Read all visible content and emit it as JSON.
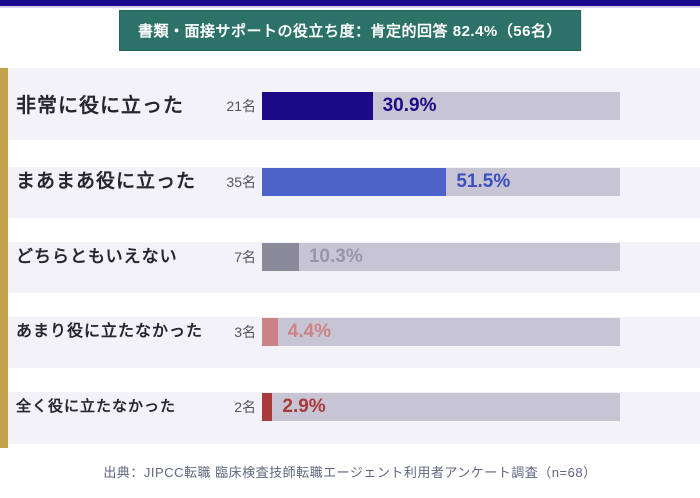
{
  "title": {
    "text": "書類・面接サポートの役立ち度：肯定的回答 82.4%（56名）"
  },
  "chart_data": {
    "type": "bar",
    "orientation": "horizontal",
    "title": "書類・面接サポートの役立ち度：肯定的回答 82.4%（56名）",
    "categories": [
      "非常に役に立った",
      "まあまあ役に立った",
      "どちらともいえない",
      "あまり役に立たなかった",
      "全く役に立たなかった"
    ],
    "values": [
      30.9,
      51.5,
      10.3,
      4.4,
      2.9
    ],
    "counts": [
      21,
      35,
      7,
      3,
      2
    ],
    "count_labels": [
      "21名",
      "35名",
      "7名",
      "3名",
      "2名"
    ],
    "value_labels": [
      "30.9%",
      "51.5%",
      "10.3%",
      "4.4%",
      "2.9%"
    ],
    "bar_colors": [
      "#1c0987",
      "#4d63c8",
      "#8b8a9b",
      "#cd8286",
      "#a93a3b"
    ],
    "value_label_colors": [
      "#1c0987",
      "#3a4fc0",
      "#9896a6",
      "#cd8286",
      "#a93a3b"
    ],
    "xlim": [
      0,
      100
    ],
    "grid": false,
    "legend": false,
    "sample_note": "n=68"
  },
  "rows": [
    {
      "label": "非常に役に立った",
      "count_label": "21名",
      "value_label": "30.9%"
    },
    {
      "label": "まあまあ役に立った",
      "count_label": "35名",
      "value_label": "51.5%"
    },
    {
      "label": "どちらともいえない",
      "count_label": "7名",
      "value_label": "10.3%"
    },
    {
      "label": "あまり役に立たなかった",
      "count_label": "3名",
      "value_label": "4.4%"
    },
    {
      "label": "全く役に立たなかった",
      "count_label": "2名",
      "value_label": "2.9%"
    }
  ],
  "footer": {
    "text": "出典：JIPCC転職 臨床検査技師転職エージェント利用者アンケート調査（n=68）"
  },
  "colors": {
    "top_strip": "#190a8e",
    "top_strip_line": "#d2d0ec",
    "banner_bg": "#2d7268",
    "banner_border": "#26615a",
    "accent_gold": "#c6a14b",
    "row_stripe": "#f3f2f8",
    "track": "#c7c5d3",
    "label": "#27262e",
    "count": "#55545e",
    "footer": "#5f6680"
  }
}
